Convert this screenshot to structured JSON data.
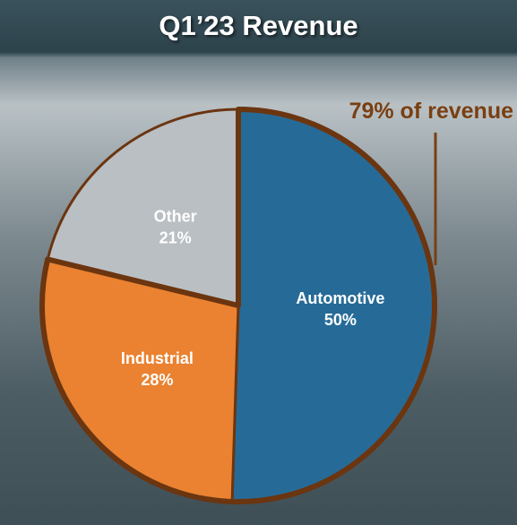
{
  "header": {
    "title": "Q1’23 Revenue"
  },
  "annotation": {
    "text": "79% of revenue",
    "color": "#7a3f12"
  },
  "chart_data": {
    "type": "pie",
    "title": "Q1’23 Revenue",
    "start_angle_deg": 0,
    "direction": "clockwise",
    "slices": [
      {
        "label": "Automotive",
        "value": 50,
        "value_label": "50%",
        "color": "#266b98"
      },
      {
        "label": "Industrial",
        "value": 28,
        "value_label": "28%",
        "color": "#ea8231"
      },
      {
        "label": "Other",
        "value": 21,
        "value_label": "21%",
        "color": "#babfc3"
      }
    ],
    "highlight": {
      "text": "79% of revenue",
      "slices": [
        "Automotive",
        "Industrial"
      ],
      "outline_color": "#6b3510"
    }
  }
}
